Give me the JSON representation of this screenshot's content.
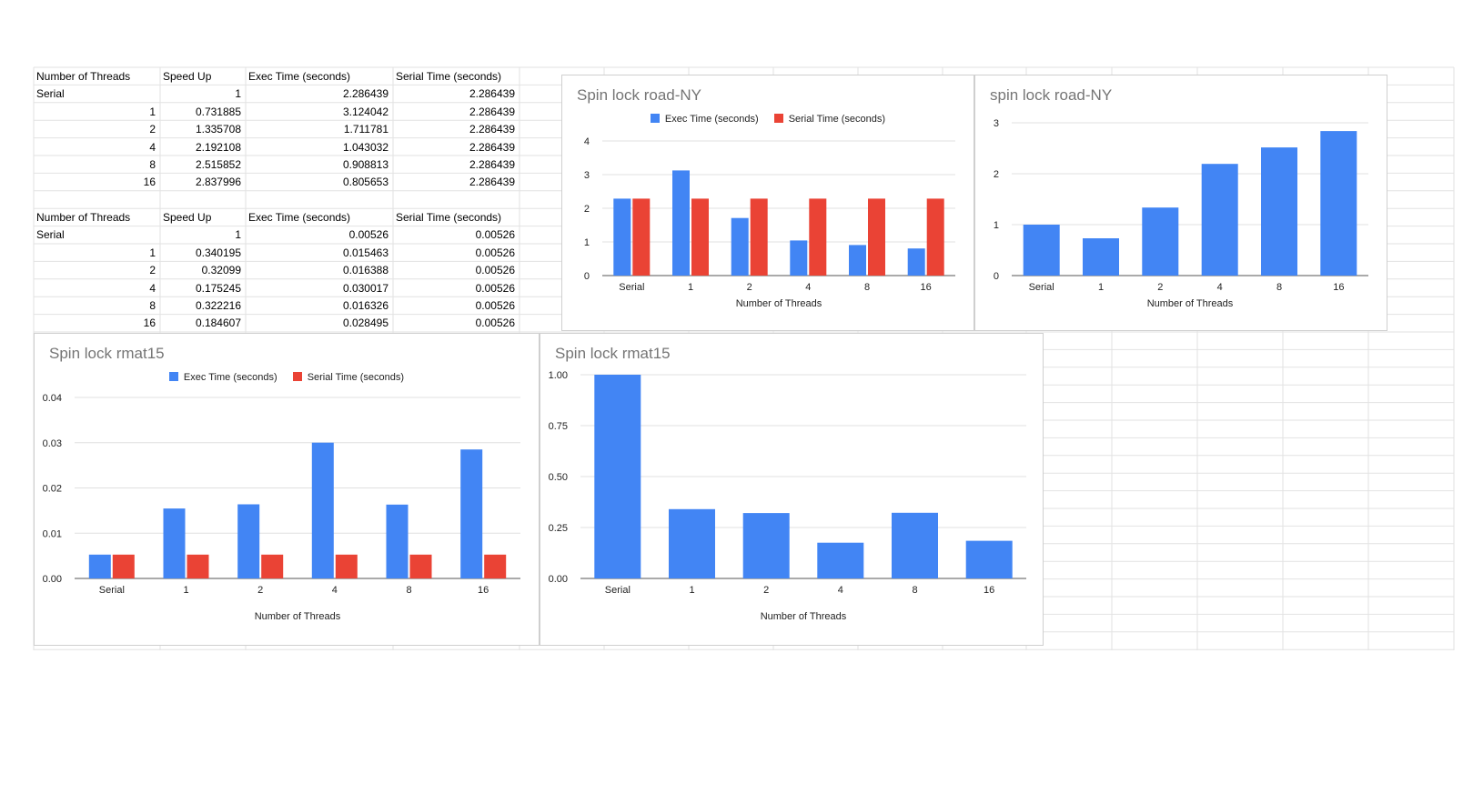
{
  "tables": [
    {
      "headers": [
        "Number of Threads",
        "Speed Up",
        "Exec Time (seconds)",
        "Serial Time (seconds)"
      ],
      "rows": [
        [
          "Serial",
          "1",
          "2.286439",
          "2.286439"
        ],
        [
          "1",
          "0.731885",
          "3.124042",
          "2.286439"
        ],
        [
          "2",
          "1.335708",
          "1.711781",
          "2.286439"
        ],
        [
          "4",
          "2.192108",
          "1.043032",
          "2.286439"
        ],
        [
          "8",
          "2.515852",
          "0.908813",
          "2.286439"
        ],
        [
          "16",
          "2.837996",
          "0.805653",
          "2.286439"
        ]
      ]
    },
    {
      "headers": [
        "Number of Threads",
        "Speed Up",
        "Exec Time (seconds)",
        "Serial Time (seconds)"
      ],
      "rows": [
        [
          "Serial",
          "1",
          "0.00526",
          "0.00526"
        ],
        [
          "1",
          "0.340195",
          "0.015463",
          "0.00526"
        ],
        [
          "2",
          "0.32099",
          "0.016388",
          "0.00526"
        ],
        [
          "4",
          "0.175245",
          "0.030017",
          "0.00526"
        ],
        [
          "8",
          "0.322216",
          "0.016326",
          "0.00526"
        ],
        [
          "16",
          "0.184607",
          "0.028495",
          "0.00526"
        ]
      ]
    }
  ],
  "colors": {
    "exec": "#4285f4",
    "serial": "#ea4335",
    "grid": "#e0e0e0",
    "axis": "#555555"
  },
  "chart_data": [
    {
      "id": "chart1",
      "type": "bar",
      "title": "Spin lock road-NY",
      "categories": [
        "Serial",
        "1",
        "2",
        "4",
        "8",
        "16"
      ],
      "series": [
        {
          "name": "Exec Time (seconds)",
          "color": "#4285f4",
          "values": [
            2.286439,
            3.124042,
            1.711781,
            1.043032,
            0.908813,
            0.805653
          ]
        },
        {
          "name": "Serial Time (seconds)",
          "color": "#ea4335",
          "values": [
            2.286439,
            2.286439,
            2.286439,
            2.286439,
            2.286439,
            2.286439
          ]
        }
      ],
      "ylim": [
        0,
        4
      ],
      "yticks": [
        "0",
        "1",
        "2",
        "3",
        "4"
      ],
      "xlabel": "Number of Threads",
      "legend": "top"
    },
    {
      "id": "chart2",
      "type": "bar",
      "title": "spin lock road-NY",
      "categories": [
        "Serial",
        "1",
        "2",
        "4",
        "8",
        "16"
      ],
      "series": [
        {
          "name": "Speed Up",
          "color": "#4285f4",
          "values": [
            1,
            0.731885,
            1.335708,
            2.192108,
            2.515852,
            2.837996
          ]
        }
      ],
      "ylim": [
        0,
        3
      ],
      "yticks": [
        "0",
        "1",
        "2",
        "3"
      ],
      "xlabel": "Number of Threads",
      "legend": "none"
    },
    {
      "id": "chart3",
      "type": "bar",
      "title": "Spin lock rmat15",
      "categories": [
        "Serial",
        "1",
        "2",
        "4",
        "8",
        "16"
      ],
      "series": [
        {
          "name": "Exec Time (seconds)",
          "color": "#4285f4",
          "values": [
            0.00526,
            0.015463,
            0.016388,
            0.030017,
            0.016326,
            0.028495
          ]
        },
        {
          "name": "Serial Time (seconds)",
          "color": "#ea4335",
          "values": [
            0.00526,
            0.00526,
            0.00526,
            0.00526,
            0.00526,
            0.00526
          ]
        }
      ],
      "ylim": [
        0,
        0.04
      ],
      "yticks": [
        "0.00",
        "0.01",
        "0.02",
        "0.03",
        "0.04"
      ],
      "xlabel": "Number of Threads",
      "legend": "top"
    },
    {
      "id": "chart4",
      "type": "bar",
      "title": "Spin lock rmat15",
      "categories": [
        "Serial",
        "1",
        "2",
        "4",
        "8",
        "16"
      ],
      "series": [
        {
          "name": "Speed Up",
          "color": "#4285f4",
          "values": [
            1,
            0.340195,
            0.32099,
            0.175245,
            0.322216,
            0.184607
          ]
        }
      ],
      "ylim": [
        0,
        1
      ],
      "yticks": [
        "0.00",
        "0.25",
        "0.50",
        "0.75",
        "1.00"
      ],
      "xlabel": "Number of Threads",
      "legend": "none"
    }
  ]
}
